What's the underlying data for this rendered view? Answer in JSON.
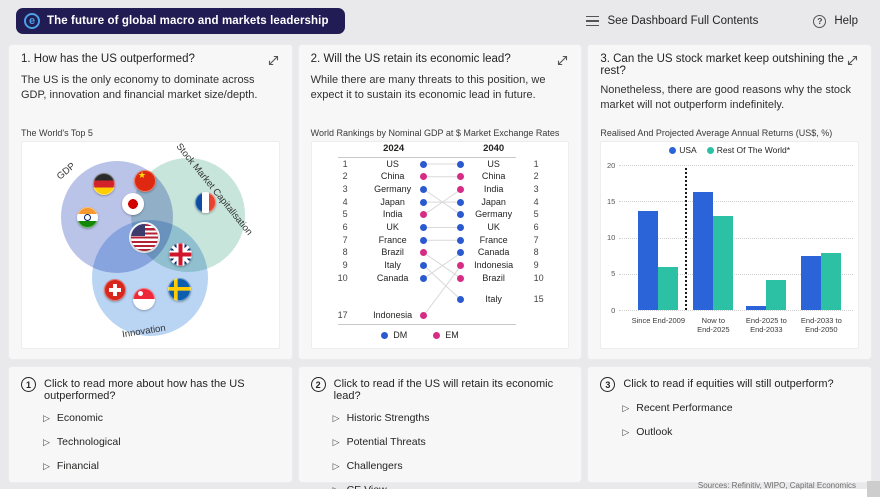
{
  "header": {
    "logo_letter": "e",
    "title": "The future of global macro and markets leadership",
    "contents_label": "See Dashboard Full Contents",
    "help_icon": "?",
    "help_label": "Help"
  },
  "panels": {
    "p1": {
      "title": "1. How has the US outperformed?",
      "body": "The US is the only economy to dominate across GDP, innovation and financial market size/depth.",
      "chart_title": "The World's Top 5"
    },
    "p2": {
      "title": "2. Will the US retain its economic lead?",
      "body": "While there are many threats to this position, we expect it to sustain its economic lead in future.",
      "chart_title": "World Rankings by Nominal GDP at $ Market Exchange Rates"
    },
    "p3": {
      "title": "3. Can the US stock market keep outshining the rest?",
      "body": "Nonetheless, there are good reasons why the stock market will not outperform indefinitely.",
      "chart_title": "Realised And Projected Average Annual Returns (US$, %)"
    }
  },
  "chart_data": [
    {
      "id": "top5_venn",
      "type": "venn",
      "title": "The World's Top 5",
      "sets": [
        {
          "label": "GDP",
          "color": "#a9b5e4"
        },
        {
          "label": "Stock Market Capitalisation",
          "color": "#b9ded1"
        },
        {
          "label": "Innovation",
          "color": "#a7cbf0"
        }
      ],
      "members": [
        {
          "country": "Germany",
          "sets": [
            "GDP"
          ]
        },
        {
          "country": "India",
          "sets": [
            "GDP"
          ]
        },
        {
          "country": "China",
          "sets": [
            "GDP",
            "Stock Market Capitalisation"
          ]
        },
        {
          "country": "Japan",
          "sets": [
            "GDP",
            "Stock Market Capitalisation"
          ]
        },
        {
          "country": "France",
          "sets": [
            "Stock Market Capitalisation"
          ]
        },
        {
          "country": "US",
          "sets": [
            "GDP",
            "Stock Market Capitalisation",
            "Innovation"
          ]
        },
        {
          "country": "UK",
          "sets": [
            "Stock Market Capitalisation",
            "Innovation"
          ]
        },
        {
          "country": "Switzerland",
          "sets": [
            "Innovation"
          ]
        },
        {
          "country": "Singapore",
          "sets": [
            "Innovation"
          ]
        },
        {
          "country": "Sweden",
          "sets": [
            "Innovation"
          ]
        }
      ]
    },
    {
      "id": "gdp_rankings",
      "type": "table",
      "title": "World Rankings by Nominal GDP at $ Market Exchange Rates",
      "columns": [
        "2024",
        "2040"
      ],
      "colors": {
        "DM": "#2b59d0",
        "EM": "#d62c86"
      },
      "rows": [
        {
          "country": "US",
          "rank_2024": 1,
          "rank_2040": 1,
          "type": "DM"
        },
        {
          "country": "China",
          "rank_2024": 2,
          "rank_2040": 2,
          "type": "EM"
        },
        {
          "country": "Germany",
          "rank_2024": 3,
          "rank_2040": 5,
          "type": "DM"
        },
        {
          "country": "Japan",
          "rank_2024": 4,
          "rank_2040": 4,
          "type": "DM"
        },
        {
          "country": "India",
          "rank_2024": 5,
          "rank_2040": 3,
          "type": "EM"
        },
        {
          "country": "UK",
          "rank_2024": 6,
          "rank_2040": 6,
          "type": "DM"
        },
        {
          "country": "France",
          "rank_2024": 7,
          "rank_2040": 7,
          "type": "DM"
        },
        {
          "country": "Brazil",
          "rank_2024": 8,
          "rank_2040": 10,
          "type": "EM"
        },
        {
          "country": "Italy",
          "rank_2024": 9,
          "rank_2040": 15,
          "type": "DM"
        },
        {
          "country": "Canada",
          "rank_2024": 10,
          "rank_2040": 8,
          "type": "DM"
        },
        {
          "country": "Indonesia",
          "rank_2024": 17,
          "rank_2040": 9,
          "type": "EM"
        }
      ],
      "legend": [
        {
          "label": "DM",
          "type": "DM"
        },
        {
          "label": "EM",
          "type": "EM"
        }
      ]
    },
    {
      "id": "returns_bar",
      "type": "bar",
      "title": "Realised And Projected Average Annual Returns (US$, %)",
      "categories": [
        "Since End-2009",
        "Now to End-2025",
        "End-2025 to End-2033",
        "End-2033 to End-2050"
      ],
      "categories_lines": [
        [
          "Since End-2009"
        ],
        [
          "Now to",
          "End-2025"
        ],
        [
          "End-2025 to",
          "End-2033"
        ],
        [
          "End-2033 to",
          "End-2050"
        ]
      ],
      "series": [
        {
          "name": "USA",
          "color": "#2b63d9",
          "values": [
            13.7,
            16.3,
            0.5,
            7.4
          ]
        },
        {
          "name": "Rest Of The World*",
          "color": "#2cc0a4",
          "values": [
            6.0,
            13.0,
            4.1,
            7.9
          ]
        }
      ],
      "ylim": [
        0,
        20
      ],
      "yticks": [
        0,
        5,
        10,
        15,
        20
      ],
      "grid": "dotted-horizontal",
      "divider_after_category_index": 0,
      "legend_position": "top-center"
    }
  ],
  "bottom_panels": [
    {
      "number": "1",
      "question": "Click to read more about how has the US outperformed?",
      "items": [
        "Economic",
        "Technological",
        "Financial"
      ]
    },
    {
      "number": "2",
      "question": "Click to read if the US will retain its economic lead?",
      "items": [
        "Historic Strengths",
        "Potential Threats",
        "Challengers",
        "CE View"
      ]
    },
    {
      "number": "3",
      "question": "Click to read if equities will still outperform?",
      "items": [
        "Recent Performance",
        "Outlook"
      ]
    }
  ],
  "footer": {
    "sources": "Sources: Refinitiv, WIPO, Capital Economics"
  }
}
